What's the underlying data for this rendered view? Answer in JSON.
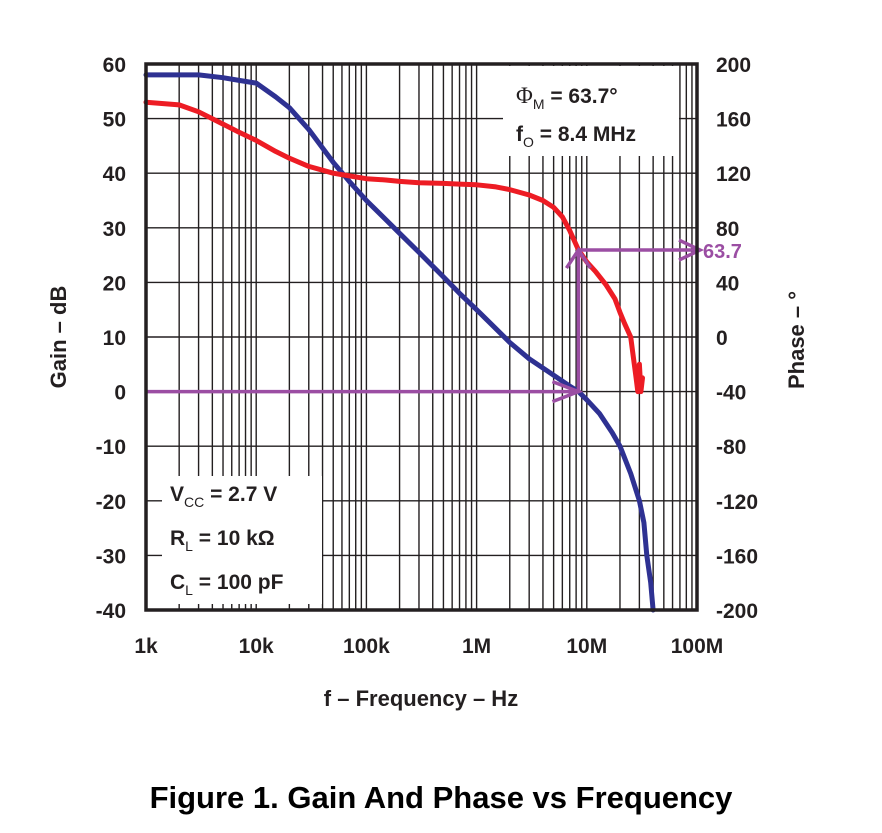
{
  "caption": "Figure 1. Gain And Phase vs Frequency",
  "chart_data": {
    "type": "line",
    "title": "Figure 1. Gain And Phase vs Frequency",
    "xlabel": "f – Frequency – Hz",
    "ylabel": "Gain – dB",
    "y2label": "Phase – °",
    "xscale": "log",
    "xlim": [
      1000,
      100000000
    ],
    "ylim": [
      -40,
      60
    ],
    "y2lim": [
      -200,
      200
    ],
    "grid": true,
    "x_ticks": [
      {
        "value": 1000,
        "label": "1k"
      },
      {
        "value": 10000,
        "label": "10k"
      },
      {
        "value": 100000,
        "label": "100k"
      },
      {
        "value": 1000000,
        "label": "1M"
      },
      {
        "value": 10000000,
        "label": "10M"
      },
      {
        "value": 100000000,
        "label": "100M"
      }
    ],
    "y_ticks": [
      "60",
      "50",
      "40",
      "30",
      "20",
      "10",
      "0",
      "-10",
      "-20",
      "-30",
      "-40"
    ],
    "y2_ticks": [
      "200",
      "160",
      "120",
      "80",
      "40",
      "0",
      "-40",
      "-80",
      "-120",
      "-160",
      "-200"
    ],
    "series": [
      {
        "name": "Gain",
        "axis": "left",
        "color": "#2e3192",
        "x": [
          1000,
          2000,
          3000,
          5000,
          7000,
          10000,
          15000,
          20000,
          30000,
          50000,
          70000,
          100000,
          150000,
          200000,
          300000,
          500000,
          700000,
          1000000,
          1500000,
          2000000,
          3000000,
          5000000,
          7000000,
          8400000,
          10000000,
          13000000,
          17000000,
          20000000,
          25000000,
          30000000,
          33000000,
          35000000,
          38000000,
          40000000
        ],
        "values": [
          58,
          58,
          58,
          57.5,
          57,
          56.5,
          54,
          52,
          48,
          42,
          38.5,
          35,
          31.5,
          29,
          25.5,
          21,
          18,
          15,
          11.5,
          9,
          6,
          3,
          1,
          0,
          -1.5,
          -4,
          -7.5,
          -10,
          -15,
          -20,
          -24,
          -30,
          -35,
          -40
        ]
      },
      {
        "name": "Phase",
        "axis": "right",
        "color": "#ed1c24",
        "x": [
          1000,
          2000,
          3000,
          5000,
          7000,
          10000,
          15000,
          20000,
          30000,
          50000,
          70000,
          100000,
          150000,
          200000,
          300000,
          500000,
          700000,
          1000000,
          1500000,
          2000000,
          3000000,
          4000000,
          5000000,
          6000000,
          7000000,
          8400000,
          10000000,
          12000000,
          15000000,
          18000000,
          20000000,
          22000000,
          25000000,
          27000000,
          28000000,
          29000000,
          30000000,
          31000000,
          32000000
        ],
        "values": [
          172,
          170,
          165,
          156,
          150,
          144,
          136,
          131,
          125,
          120,
          118,
          116,
          115,
          114,
          113,
          112.5,
          112,
          111.5,
          110,
          108,
          104,
          100,
          95,
          88,
          78,
          63.7,
          55,
          48,
          38,
          28,
          18,
          10,
          0,
          -20,
          -30,
          -40,
          -20,
          -40,
          -30
        ]
      }
    ],
    "annotations": [
      {
        "text": "ΦM = 63.7°",
        "main": "Φ",
        "sub": "M",
        "rest": " = 63.7°",
        "location": "top-right"
      },
      {
        "text": "fO = 8.4 MHz",
        "main": "f",
        "sub": "O",
        "rest": " = 8.4 MHz",
        "location": "top-right"
      },
      {
        "text": "VCC = 2.7 V",
        "main": "V",
        "sub": "CC",
        "rest": " = 2.7 V",
        "location": "bottom-left"
      },
      {
        "text": "RL = 10 kΩ",
        "main": "R",
        "sub": "L",
        "rest": " = 10 kΩ",
        "location": "bottom-left"
      },
      {
        "text": "CL = 100 pF",
        "main": "C",
        "sub": "L",
        "rest": " = 100 pF",
        "location": "bottom-left"
      }
    ],
    "markers": {
      "color": "#9b4ea3",
      "unity_gain_frequency": 8400000,
      "unity_gain_db": 0,
      "phase_margin_deg": 63.7,
      "phase_margin_label": "63.7"
    }
  }
}
